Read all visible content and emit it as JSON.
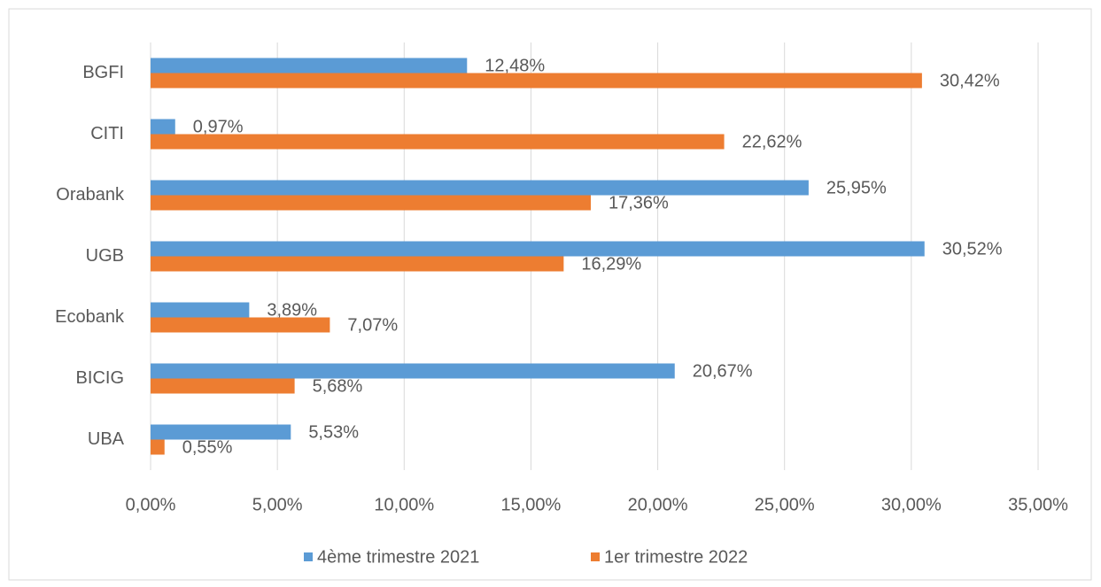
{
  "chart_data": {
    "type": "bar",
    "orientation": "horizontal",
    "categories": [
      "BGFI",
      "CITI",
      "Orabank",
      "UGB",
      "Ecobank",
      "BICIG",
      "UBA"
    ],
    "series": [
      {
        "name": "4ème trimestre 2021",
        "color": "#5b9bd5",
        "values": [
          12.48,
          0.97,
          25.95,
          30.52,
          3.89,
          20.67,
          5.53
        ],
        "value_labels": [
          "12,48%",
          "0,97%",
          "25,95%",
          "30,52%",
          "3,89%",
          "20,67%",
          "5,53%"
        ]
      },
      {
        "name": "1er trimestre 2022",
        "color": "#ed7d31",
        "values": [
          30.42,
          22.62,
          17.36,
          16.29,
          7.07,
          5.68,
          0.55
        ],
        "value_labels": [
          "30,42%",
          "22,62%",
          "17,36%",
          "16,29%",
          "7,07%",
          "5,68%",
          "0,55%"
        ]
      }
    ],
    "xlim": [
      0,
      35
    ],
    "xticks": [
      {
        "value": 0,
        "label": "0,00%"
      },
      {
        "value": 5,
        "label": "5,00%"
      },
      {
        "value": 10,
        "label": "10,00%"
      },
      {
        "value": 15,
        "label": "15,00%"
      },
      {
        "value": 20,
        "label": "20,00%"
      },
      {
        "value": 25,
        "label": "25,00%"
      },
      {
        "value": 30,
        "label": "30,00%"
      },
      {
        "value": 35,
        "label": "35,00%"
      }
    ],
    "grid": true,
    "legend": "bottom"
  }
}
